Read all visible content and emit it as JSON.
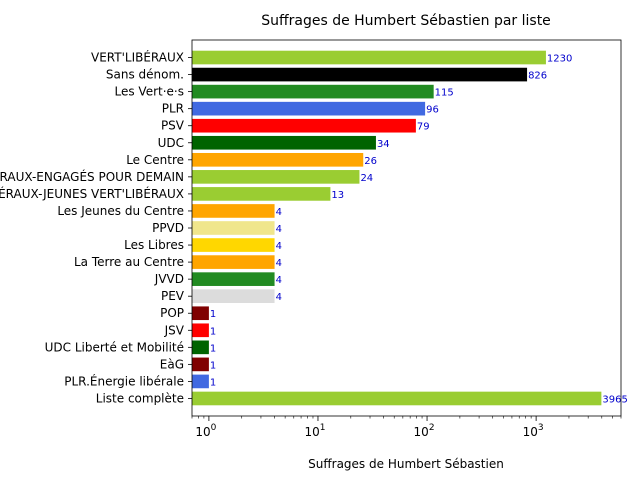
{
  "chart_data": {
    "type": "bar",
    "orientation": "horizontal",
    "title": "Suffrages de Humbert Sébastien par liste",
    "xlabel": "Suffrages de Humbert Sébastien",
    "ylabel": "",
    "x_scale": "log",
    "xlim": [
      0.7,
      6000
    ],
    "x_ticks": [
      {
        "value": 1,
        "base": "10",
        "exp": "0"
      },
      {
        "value": 10,
        "base": "10",
        "exp": "1"
      },
      {
        "value": 100,
        "base": "10",
        "exp": "2"
      },
      {
        "value": 1000,
        "base": "10",
        "exp": "3"
      }
    ],
    "grid": false,
    "legend": "none",
    "bars": [
      {
        "category": "VERT'LIBÉRAUX",
        "value": 1230,
        "color": "#9acd32"
      },
      {
        "category": "Sans dénom.",
        "value": 826,
        "color": "#000000"
      },
      {
        "category": "Les Vert·e·s",
        "value": 115,
        "color": "#228b22"
      },
      {
        "category": "PLR",
        "value": 96,
        "color": "#4169e1"
      },
      {
        "category": "PSV",
        "value": 79,
        "color": "#ff0000"
      },
      {
        "category": "UDC",
        "value": 34,
        "color": "#006400"
      },
      {
        "category": "Le Centre",
        "value": 26,
        "color": "#ffa500"
      },
      {
        "category": "VAUD LIBÉRAUX-ENGAGÉS POUR DEMAIN",
        "value": 24,
        "color": "#9acd32"
      },
      {
        "category": "VAUD LIBÉRAUX-JEUNES VERT'LIBÉRAUX",
        "value": 13,
        "color": "#9acd32"
      },
      {
        "category": "Les Jeunes du Centre",
        "value": 4,
        "color": "#ffa500"
      },
      {
        "category": "PPVD",
        "value": 4,
        "color": "#f0e68c"
      },
      {
        "category": "Les Libres",
        "value": 4,
        "color": "#ffd700"
      },
      {
        "category": "La Terre au Centre",
        "value": 4,
        "color": "#ffa500"
      },
      {
        "category": "JVVD",
        "value": 4,
        "color": "#228b22"
      },
      {
        "category": "PEV",
        "value": 4,
        "color": "#dcdcdc"
      },
      {
        "category": "POP",
        "value": 1,
        "color": "#800000"
      },
      {
        "category": "JSV",
        "value": 1,
        "color": "#ff0000"
      },
      {
        "category": "UDC Liberté et Mobilité",
        "value": 1,
        "color": "#006400"
      },
      {
        "category": "EàG",
        "value": 1,
        "color": "#800000"
      },
      {
        "category": "PLR.Énergie libérale",
        "value": 1,
        "color": "#4169e1"
      },
      {
        "category": "Liste complète",
        "value": 3965,
        "color": "#9acd32"
      }
    ]
  }
}
